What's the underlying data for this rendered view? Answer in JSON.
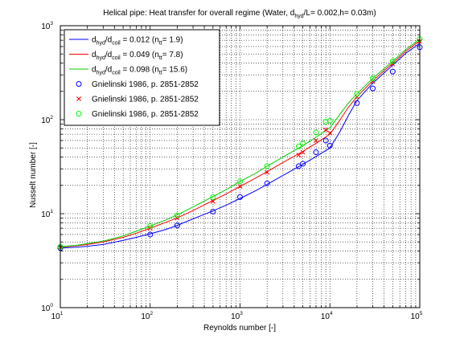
{
  "chart_data": {
    "type": "line",
    "title": {
      "prefix": "Helical pipe: Heat transfer for overall regime (Water, d",
      "sub": "hyd",
      "suffix": "/L= 0.002,h= 0.03m)"
    },
    "xlabel": "Reynolds number [-]",
    "ylabel": "Nusselt number [-]",
    "xscale": "log",
    "yscale": "log",
    "xlim": [
      10,
      100000
    ],
    "ylim": [
      1,
      1000
    ],
    "grid": true,
    "legend_position": "top-left",
    "x_ticks": [
      {
        "base": "10",
        "exp": "1"
      },
      {
        "base": "10",
        "exp": "2"
      },
      {
        "base": "10",
        "exp": "3"
      },
      {
        "base": "10",
        "exp": "4"
      },
      {
        "base": "10",
        "exp": "5"
      }
    ],
    "y_ticks": [
      {
        "base": "10",
        "exp": "0"
      },
      {
        "base": "10",
        "exp": "1"
      },
      {
        "base": "10",
        "exp": "2"
      },
      {
        "base": "10",
        "exp": "3"
      }
    ],
    "series": [
      {
        "kind": "line",
        "color": "#0000ff",
        "label": {
          "t1": "d",
          "s1": "hyd",
          "t2": "/d",
          "s2": "coil",
          "t3": " = 0.012 (n",
          "s3": "tt",
          "t4": "= 1.9)"
        },
        "x": [
          10,
          15,
          20,
          30,
          50,
          70,
          100,
          150,
          200,
          300,
          500,
          700,
          1000,
          1500,
          2000,
          3000,
          5000,
          7000,
          10000,
          13000,
          16000,
          20000,
          30000,
          50000,
          70000,
          100000
        ],
        "y": [
          4.3,
          4.4,
          4.5,
          4.7,
          5.2,
          5.6,
          6.1,
          6.8,
          7.5,
          8.8,
          10.7,
          12.3,
          14.5,
          17.6,
          20.5,
          25.5,
          33.5,
          40.5,
          50,
          75,
          110,
          160,
          245,
          380,
          510,
          650
        ]
      },
      {
        "kind": "line",
        "color": "#ff0000",
        "label": {
          "t1": "d",
          "s1": "hyd",
          "t2": "/d",
          "s2": "coil",
          "t3": " = 0.049 (n",
          "s3": "tt",
          "t4": "= 7.8)"
        },
        "x": [
          10,
          15,
          20,
          30,
          50,
          70,
          100,
          150,
          200,
          300,
          500,
          700,
          1000,
          1500,
          2000,
          3000,
          5000,
          7000,
          10000,
          13000,
          16000,
          20000,
          30000,
          50000,
          70000,
          100000
        ],
        "y": [
          4.4,
          4.55,
          4.7,
          5.0,
          5.6,
          6.2,
          7.0,
          8.1,
          9.0,
          10.8,
          13.8,
          16.2,
          19.5,
          24,
          28,
          35,
          46,
          56,
          70,
          100,
          135,
          175,
          260,
          400,
          535,
          690
        ]
      },
      {
        "kind": "line",
        "color": "#00cc00",
        "label": {
          "t1": "d",
          "s1": "hyd",
          "t2": "/d",
          "s2": "coil",
          "t3": " = 0.098 (n",
          "s3": "tt",
          "t4": "= 15.6)"
        },
        "x": [
          10,
          15,
          20,
          30,
          50,
          70,
          100,
          150,
          200,
          300,
          500,
          700,
          1000,
          1500,
          2000,
          3000,
          5000,
          7000,
          10000,
          13000,
          16000,
          20000,
          30000,
          50000,
          70000,
          100000
        ],
        "y": [
          4.45,
          4.6,
          4.8,
          5.1,
          5.8,
          6.5,
          7.4,
          8.6,
          9.7,
          11.8,
          15.2,
          18,
          22,
          27,
          32,
          40,
          53,
          65,
          82,
          115,
          150,
          188,
          275,
          420,
          560,
          720
        ]
      },
      {
        "kind": "marker",
        "marker": "circle",
        "color": "#0000ff",
        "label": {
          "t1": "Gnielinski 1986, p. 2851-2852"
        },
        "x": [
          10,
          100,
          200,
          500,
          1000,
          2000,
          4500,
          5000,
          7000,
          9000,
          10000,
          20000,
          30000,
          50000,
          100000
        ],
        "y": [
          4.3,
          6.0,
          7.5,
          10.5,
          15,
          21,
          32,
          34,
          45,
          60,
          53,
          150,
          215,
          325,
          590
        ]
      },
      {
        "kind": "marker",
        "marker": "x",
        "color": "#ff0000",
        "label": {
          "t1": "Gnielinski 1986, p. 2851-2852"
        },
        "x": [
          10,
          100,
          200,
          500,
          1000,
          2000,
          4500,
          5000,
          7000,
          9000,
          10000,
          20000,
          30000,
          50000,
          100000
        ],
        "y": [
          4.4,
          7.0,
          9.0,
          13.5,
          19.5,
          27.5,
          42,
          45,
          60,
          78,
          72,
          175,
          255,
          390,
          680
        ]
      },
      {
        "kind": "marker",
        "marker": "circle",
        "color": "#00ff00",
        "label": {
          "t1": "Gnielinski 1986, p. 2851-2852"
        },
        "x": [
          10,
          100,
          200,
          500,
          1000,
          2000,
          4500,
          5000,
          7000,
          9000,
          10000,
          20000,
          30000,
          50000,
          100000
        ],
        "y": [
          4.45,
          7.4,
          9.6,
          15,
          22,
          32,
          52,
          56,
          73,
          95,
          97,
          188,
          275,
          420,
          720
        ]
      }
    ]
  }
}
